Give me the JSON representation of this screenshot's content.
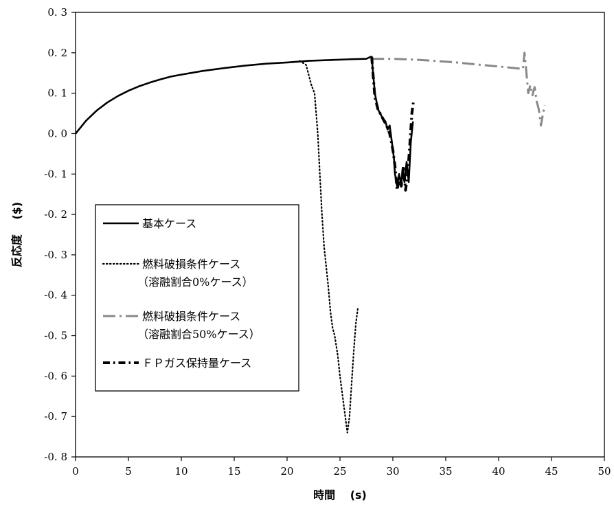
{
  "chart_data": {
    "type": "line",
    "xlabel": "時間　 (s)",
    "ylabel": "反応度　 ($)",
    "xlim": [
      0,
      50
    ],
    "ylim": [
      -0.8,
      0.3
    ],
    "xticks": [
      0,
      5,
      10,
      15,
      20,
      25,
      30,
      35,
      40,
      45,
      50
    ],
    "xtick_labels": [
      "0",
      "5",
      "10",
      "15",
      "20",
      "25",
      "30",
      "35",
      "40",
      "45",
      "50"
    ],
    "yticks": [
      0.3,
      0.2,
      0.1,
      0.0,
      -0.1,
      -0.2,
      -0.3,
      -0.4,
      -0.5,
      -0.6,
      -0.7,
      -0.8
    ],
    "ytick_labels": [
      "0. 3",
      "0. 2",
      "0. 1",
      "0. 0",
      "-0. 1",
      "-0. 2",
      "-0. 3",
      "-0. 4",
      "-0. 5",
      "-0. 6",
      "-0. 7",
      "-0. 8"
    ],
    "grid": false,
    "legend_position": "left-middle",
    "series": [
      {
        "name": "基本ケース",
        "legend_lines": [
          "基本ケース"
        ],
        "color": "#000000",
        "style": "solid",
        "points": [
          [
            0,
            0.0
          ],
          [
            1,
            0.032
          ],
          [
            2,
            0.057
          ],
          [
            3,
            0.077
          ],
          [
            4,
            0.093
          ],
          [
            5,
            0.106
          ],
          [
            6,
            0.117
          ],
          [
            7,
            0.126
          ],
          [
            8,
            0.134
          ],
          [
            9,
            0.141
          ],
          [
            10,
            0.146
          ],
          [
            12,
            0.155
          ],
          [
            14,
            0.162
          ],
          [
            16,
            0.168
          ],
          [
            18,
            0.173
          ],
          [
            20,
            0.176
          ],
          [
            22,
            0.18
          ],
          [
            24,
            0.182
          ],
          [
            26,
            0.184
          ],
          [
            27.5,
            0.185
          ],
          [
            27.9,
            0.19
          ],
          [
            28.0,
            0.19
          ],
          [
            28.1,
            0.16
          ],
          [
            28.3,
            0.1
          ],
          [
            28.6,
            0.06
          ],
          [
            29.0,
            0.04
          ],
          [
            29.3,
            0.03
          ],
          [
            29.5,
            0.01
          ],
          [
            29.7,
            0.02
          ],
          [
            29.9,
            -0.02
          ],
          [
            30.1,
            -0.06
          ],
          [
            30.2,
            -0.1
          ],
          [
            30.4,
            -0.13
          ],
          [
            30.6,
            -0.1
          ],
          [
            30.8,
            -0.13
          ],
          [
            30.9,
            -0.09
          ],
          [
            31.1,
            -0.12
          ],
          [
            31.3,
            -0.07
          ],
          [
            31.5,
            -0.12
          ],
          [
            31.7,
            -0.02
          ],
          [
            31.9,
            0.03
          ]
        ]
      },
      {
        "name": "燃料破損条件ケース（溶融割合0%ケース）",
        "legend_lines": [
          "燃料破損条件ケース",
          "（溶融割合0%ケース）"
        ],
        "color": "#000000",
        "style": "dotted",
        "points": [
          [
            21.2,
            0.18
          ],
          [
            21.8,
            0.17
          ],
          [
            22.3,
            0.12
          ],
          [
            22.6,
            0.1
          ],
          [
            22.9,
            0.0
          ],
          [
            23.1,
            -0.1
          ],
          [
            23.3,
            -0.2
          ],
          [
            23.5,
            -0.28
          ],
          [
            23.7,
            -0.33
          ],
          [
            23.9,
            -0.38
          ],
          [
            24.1,
            -0.44
          ],
          [
            24.3,
            -0.48
          ],
          [
            24.5,
            -0.5
          ],
          [
            24.8,
            -0.55
          ],
          [
            25.0,
            -0.6
          ],
          [
            25.3,
            -0.66
          ],
          [
            25.5,
            -0.7
          ],
          [
            25.7,
            -0.74
          ],
          [
            25.9,
            -0.7
          ],
          [
            26.1,
            -0.62
          ],
          [
            26.3,
            -0.54
          ],
          [
            26.5,
            -0.47
          ],
          [
            26.7,
            -0.43
          ]
        ]
      },
      {
        "name": "燃料破損条件ケース（溶融割合50%ケース）",
        "legend_lines": [
          "燃料破損条件ケース",
          "（溶融割合50%ケース）"
        ],
        "color": "#888888",
        "style": "dashdot",
        "points": [
          [
            28.0,
            0.185
          ],
          [
            30,
            0.185
          ],
          [
            32,
            0.183
          ],
          [
            34,
            0.18
          ],
          [
            36,
            0.176
          ],
          [
            38,
            0.171
          ],
          [
            40,
            0.166
          ],
          [
            42.3,
            0.16
          ],
          [
            42.45,
            0.2
          ],
          [
            42.6,
            0.16
          ],
          [
            42.8,
            0.1
          ],
          [
            43.0,
            0.12
          ],
          [
            43.2,
            0.095
          ],
          [
            43.4,
            0.115
          ],
          [
            43.6,
            0.08
          ],
          [
            43.8,
            0.06
          ],
          [
            44.0,
            0.02
          ],
          [
            44.2,
            0.05
          ],
          [
            44.35,
            0.07
          ]
        ]
      },
      {
        "name": "ＦＰガス保持量ケース",
        "legend_lines": [
          "ＦＰガス保持量ケース"
        ],
        "color": "#000000",
        "style": "dashdotbold",
        "points": [
          [
            28.0,
            0.19
          ],
          [
            28.3,
            0.09
          ],
          [
            28.6,
            0.06
          ],
          [
            29.0,
            0.04
          ],
          [
            29.4,
            0.02
          ],
          [
            29.7,
            0.0
          ],
          [
            30.0,
            -0.04
          ],
          [
            30.2,
            -0.08
          ],
          [
            30.4,
            -0.14
          ],
          [
            30.6,
            -0.11
          ],
          [
            30.8,
            -0.13
          ],
          [
            31.0,
            -0.08
          ],
          [
            31.2,
            -0.14
          ],
          [
            31.4,
            -0.1
          ],
          [
            31.6,
            -0.03
          ],
          [
            31.8,
            0.05
          ],
          [
            31.95,
            0.08
          ]
        ]
      }
    ]
  }
}
